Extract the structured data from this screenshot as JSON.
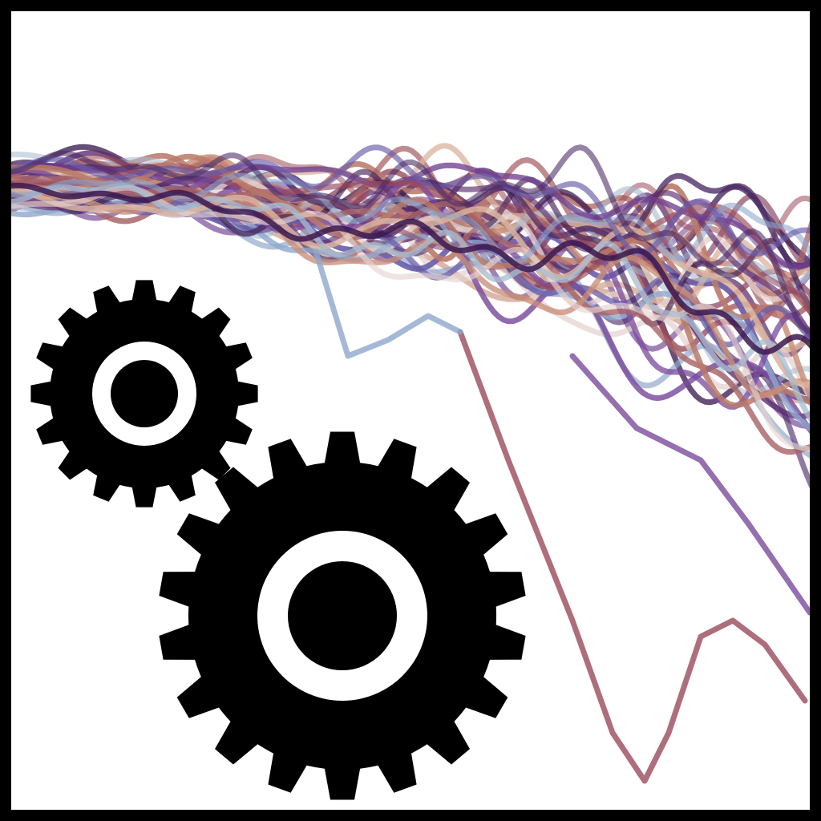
{
  "artwork": {
    "icon": "gears-icon",
    "background_color": "#ffffff",
    "border_color": "#000000",
    "gear_color": "#000000",
    "trace_palette": [
      "#3b1a4f",
      "#5a2d6e",
      "#6e3f8f",
      "#7a4b9c",
      "#8c4a66",
      "#9a4a5a",
      "#a86468",
      "#b97a6a",
      "#c98e78",
      "#d9b39e",
      "#e6d3d0",
      "#a9bcd0",
      "#8fa7cc",
      "#6a5ca8",
      "#4a2a66"
    ]
  }
}
